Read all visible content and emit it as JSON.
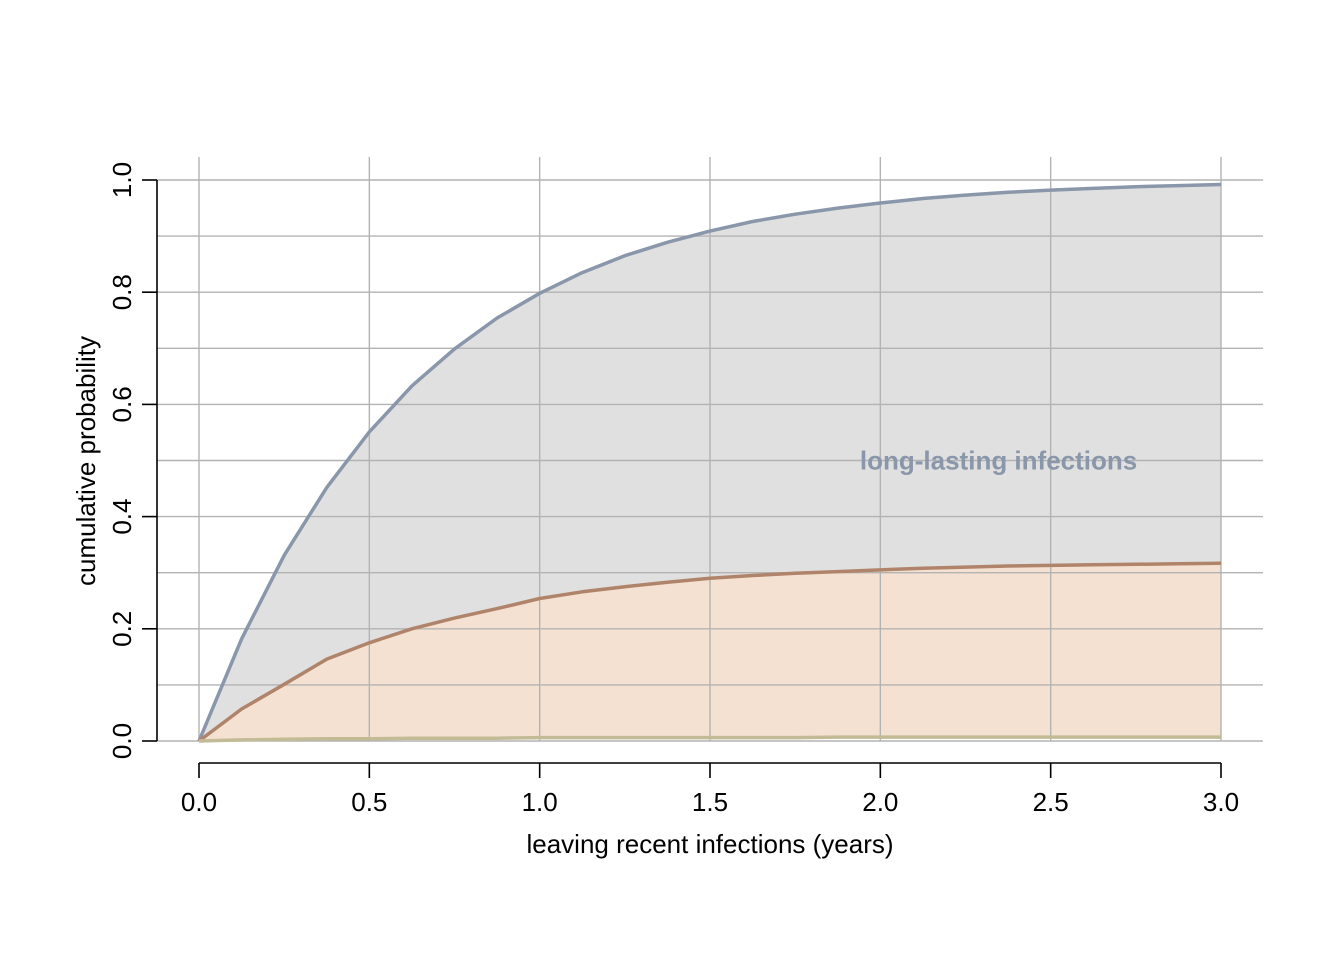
{
  "chart_data": {
    "type": "area",
    "xlabel": "leaving recent infections (years)",
    "ylabel": "cumulative probability",
    "xlim": [
      0,
      3
    ],
    "ylim": [
      0,
      1
    ],
    "x_ticks": [
      0.0,
      0.5,
      1.0,
      1.5,
      2.0,
      2.5,
      3.0
    ],
    "x_tick_labels": [
      "0.0",
      "0.5",
      "1.0",
      "1.5",
      "2.0",
      "2.5",
      "3.0"
    ],
    "y_ticks": [
      0.0,
      0.2,
      0.4,
      0.6,
      0.8,
      1.0
    ],
    "y_tick_labels": [
      "0.0",
      "0.2",
      "0.4",
      "0.6",
      "0.8",
      "1.0"
    ],
    "grid": true,
    "x": [
      0,
      0.125,
      0.25,
      0.375,
      0.5,
      0.625,
      0.75,
      0.875,
      1.0,
      1.125,
      1.25,
      1.375,
      1.5,
      1.625,
      1.75,
      1.875,
      2.0,
      2.125,
      2.25,
      2.375,
      2.5,
      2.625,
      2.75,
      2.875,
      3.0
    ],
    "series": [
      {
        "color": "#8a96aa",
        "fill": "#e0e0e0",
        "values": [
          0,
          0.182,
          0.331,
          0.452,
          0.551,
          0.633,
          0.699,
          0.754,
          0.798,
          0.835,
          0.865,
          0.889,
          0.909,
          0.926,
          0.939,
          0.95,
          0.959,
          0.967,
          0.973,
          0.978,
          0.982,
          0.985,
          0.988,
          0.99,
          0.992
        ]
      },
      {
        "color": "#b0846a",
        "fill": "#f5e1d1",
        "values": [
          0,
          0.057,
          0.101,
          0.146,
          0.175,
          0.2,
          0.219,
          0.236,
          0.254,
          0.266,
          0.275,
          0.283,
          0.29,
          0.295,
          0.299,
          0.302,
          0.305,
          0.308,
          0.31,
          0.312,
          0.313,
          0.314,
          0.315,
          0.316,
          0.317
        ]
      },
      {
        "color": "#c2bb96",
        "fill": "none",
        "values": [
          0,
          0.002,
          0.003,
          0.004,
          0.004,
          0.005,
          0.005,
          0.005,
          0.006,
          0.006,
          0.006,
          0.006,
          0.006,
          0.006,
          0.006,
          0.007,
          0.007,
          0.007,
          0.007,
          0.007,
          0.007,
          0.007,
          0.007,
          0.007,
          0.007
        ]
      }
    ],
    "annotations": [
      {
        "text": "long-lasting infections",
        "x": 1.94,
        "y": 0.5,
        "color": "#8a96aa"
      }
    ]
  }
}
